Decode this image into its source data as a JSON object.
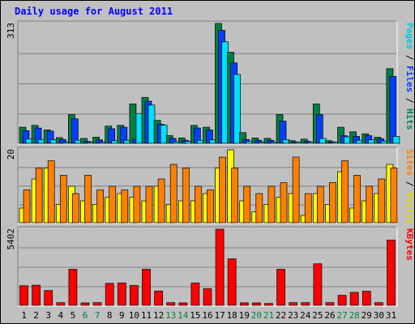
{
  "chart_data": {
    "type": "bar",
    "title": "Daily usage for August 2011",
    "categories": [
      "1",
      "2",
      "3",
      "4",
      "5",
      "6",
      "7",
      "8",
      "9",
      "10",
      "11",
      "12",
      "13",
      "14",
      "15",
      "16",
      "17",
      "18",
      "19",
      "20",
      "21",
      "22",
      "23",
      "24",
      "25",
      "26",
      "27",
      "28",
      "29",
      "30",
      "31"
    ],
    "weekend_days": [
      "6",
      "7",
      "13",
      "14",
      "20",
      "21",
      "27",
      "28"
    ],
    "grid": true,
    "panels": [
      {
        "name": "hits-files-pages",
        "ymax_label": "313",
        "ylim": [
          0,
          313
        ],
        "label_parts": [
          {
            "text": "Pages",
            "color": "#00c8e0"
          },
          {
            "text": " / ",
            "color": "#000000"
          },
          {
            "text": "Files",
            "color": "#0040ff"
          },
          {
            "text": " / ",
            "color": "#000000"
          },
          {
            "text": "Hits",
            "color": "#008060"
          }
        ],
        "series": [
          {
            "name": "Hits",
            "color": "#008040",
            "values": [
              42,
              47,
              35,
              15,
              75,
              13,
              16,
              45,
              47,
              103,
              120,
              60,
              20,
              14,
              47,
              42,
              313,
              238,
              28,
              14,
              13,
              75,
              7,
              11,
              103,
              7,
              42,
              30,
              25,
              16,
              195
            ]
          },
          {
            "name": "Files",
            "color": "#0040ff",
            "values": [
              33,
              40,
              32,
              10,
              64,
              5,
              9,
              38,
              42,
              10,
              110,
              50,
              13,
              8,
              40,
              35,
              295,
              210,
              10,
              8,
              8,
              58,
              4,
              5,
              75,
              4,
              20,
              18,
              20,
              12,
              175
            ]
          },
          {
            "name": "Pages",
            "color": "#00e0ff",
            "values": [
              12,
              10,
              9,
              3,
              8,
              2,
              2,
              7,
              8,
              78,
              100,
              48,
              4,
              5,
              8,
              9,
              265,
              180,
              5,
              3,
              2,
              10,
              1,
              3,
              13,
              1,
              17,
              8,
              9,
              6,
              18
            ]
          }
        ]
      },
      {
        "name": "visits-sites",
        "ymax_label": "20",
        "ylim": [
          0,
          20
        ],
        "label_parts": [
          {
            "text": "Sites",
            "color": "#ff8000"
          },
          {
            "text": " / ",
            "color": "#000000"
          },
          {
            "text": "Visits",
            "color": "#e0e000"
          }
        ],
        "series": [
          {
            "name": "Visits",
            "color": "#ffff00",
            "values": [
              4,
              12,
              15,
              5,
              10,
              6,
              5,
              7,
              8,
              7,
              6,
              10,
              5,
              6,
              6,
              8,
              15,
              20,
              6,
              3,
              5,
              7,
              8,
              2,
              8,
              5,
              14,
              4,
              6,
              8,
              16
            ]
          },
          {
            "name": "Sites",
            "color": "#ff8000",
            "values": [
              9,
              15,
              17,
              13,
              8,
              13,
              9,
              10,
              9,
              10,
              10,
              12,
              16,
              15,
              10,
              9,
              18,
              15,
              10,
              8,
              10,
              11,
              18,
              8,
              10,
              11,
              17,
              13,
              10,
              12,
              15
            ]
          }
        ]
      },
      {
        "name": "kbytes",
        "ymax_label": "5402",
        "ylim": [
          0,
          5402
        ],
        "label_parts": [
          {
            "text": "KBytes",
            "color": "#ff0000"
          }
        ],
        "series": [
          {
            "name": "KBytes",
            "color": "#ff0000",
            "values": [
              1390,
              1430,
              1050,
              190,
              2560,
              170,
              190,
              1560,
              1590,
              1410,
              2560,
              1020,
              190,
              170,
              1590,
              1180,
              5400,
              3300,
              180,
              170,
              130,
              2560,
              190,
              190,
              2950,
              190,
              710,
              920,
              1000,
              190,
              4630
            ]
          }
        ]
      }
    ]
  }
}
